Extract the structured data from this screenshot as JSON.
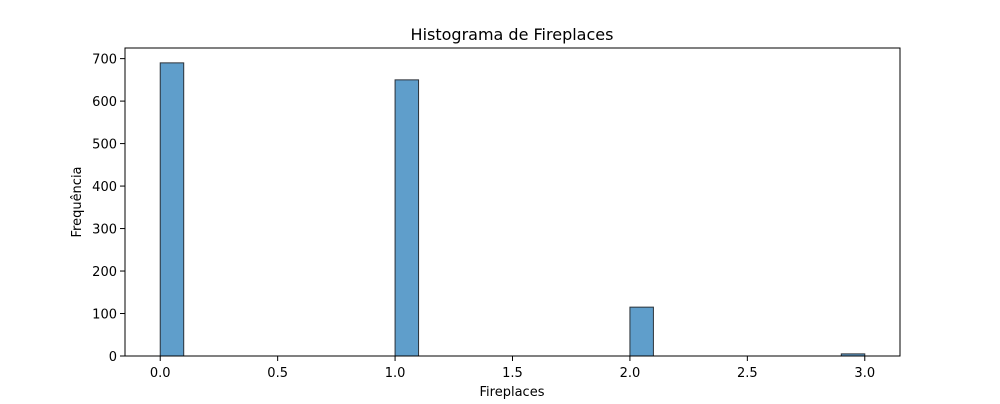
{
  "chart_data": {
    "type": "bar",
    "title": "Histograma de Fireplaces",
    "xlabel": "Fireplaces",
    "ylabel": "Frequência",
    "bars": [
      {
        "x_start": 0.0,
        "x_end": 0.1,
        "value": 690
      },
      {
        "x_start": 1.0,
        "x_end": 1.1,
        "value": 650
      },
      {
        "x_start": 2.0,
        "x_end": 2.1,
        "value": 115
      },
      {
        "x_start": 2.9,
        "x_end": 3.0,
        "value": 5
      }
    ],
    "xlim": [
      -0.15,
      3.15
    ],
    "ylim": [
      0,
      725
    ],
    "x_ticks": [
      {
        "value": 0.0,
        "label": "0.0"
      },
      {
        "value": 0.5,
        "label": "0.5"
      },
      {
        "value": 1.0,
        "label": "1.0"
      },
      {
        "value": 1.5,
        "label": "1.5"
      },
      {
        "value": 2.0,
        "label": "2.0"
      },
      {
        "value": 2.5,
        "label": "2.5"
      },
      {
        "value": 3.0,
        "label": "3.0"
      }
    ],
    "y_ticks": [
      {
        "value": 0,
        "label": "0"
      },
      {
        "value": 100,
        "label": "100"
      },
      {
        "value": 200,
        "label": "200"
      },
      {
        "value": 300,
        "label": "300"
      },
      {
        "value": 400,
        "label": "400"
      },
      {
        "value": 500,
        "label": "500"
      },
      {
        "value": 600,
        "label": "600"
      },
      {
        "value": 700,
        "label": "700"
      }
    ],
    "grid": false,
    "bar_color": "#5f9ecb",
    "edge_color": "#2b3138"
  }
}
